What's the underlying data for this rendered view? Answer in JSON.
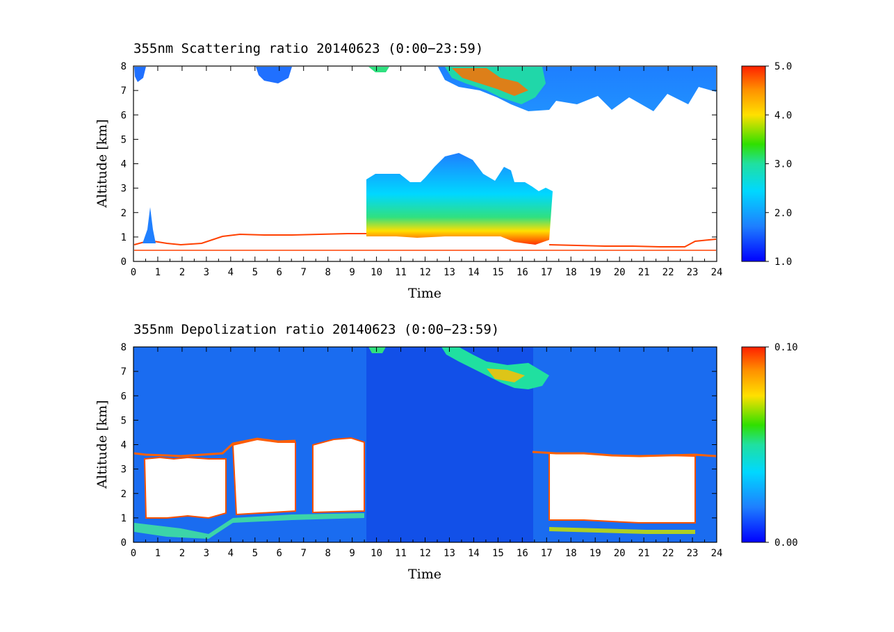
{
  "chart_data": [
    {
      "type": "heatmap",
      "title": "355nm Scattering ratio  20140623 (0:00−23:59)",
      "xlabel": "Time",
      "ylabel": "Altitude [km]",
      "xlim": [
        0,
        24
      ],
      "ylim": [
        0,
        8
      ],
      "x_ticks": [
        "0",
        "1",
        "2",
        "3",
        "4",
        "5",
        "6",
        "7",
        "8",
        "9",
        "10",
        "11",
        "12",
        "13",
        "14",
        "15",
        "16",
        "17",
        "18",
        "19",
        "20",
        "21",
        "22",
        "23",
        "24"
      ],
      "y_ticks": [
        "0",
        "1",
        "2",
        "3",
        "4",
        "5",
        "6",
        "7",
        "8"
      ],
      "colorbar": {
        "range": [
          1.0,
          5.0
        ],
        "tick_labels": [
          "5.0",
          "4.0",
          "3.0",
          "2.0",
          "1.0"
        ],
        "colors": [
          "#0000ff",
          "#1e7fff",
          "#00d8ff",
          "#20e0a0",
          "#30e000",
          "#ffe000",
          "#ff9000",
          "#ff2000"
        ]
      }
    },
    {
      "type": "heatmap",
      "title": "355nm Depolization ratio  20140623 (0:00−23:59)",
      "xlabel": "Time",
      "ylabel": "Altitude [km]",
      "xlim": [
        0,
        24
      ],
      "ylim": [
        0,
        8
      ],
      "x_ticks": [
        "0",
        "1",
        "2",
        "3",
        "4",
        "5",
        "6",
        "7",
        "8",
        "9",
        "10",
        "11",
        "12",
        "13",
        "14",
        "15",
        "16",
        "17",
        "18",
        "19",
        "20",
        "21",
        "22",
        "23",
        "24"
      ],
      "y_ticks": [
        "0",
        "1",
        "2",
        "3",
        "4",
        "5",
        "6",
        "7",
        "8"
      ],
      "colorbar": {
        "range": [
          0.0,
          0.1
        ],
        "tick_labels": [
          "0.10",
          "0.00"
        ],
        "colors": [
          "#0000ff",
          "#1e7fff",
          "#00d8ff",
          "#20e0a0",
          "#30e000",
          "#ffe000",
          "#ff9000",
          "#ff2000"
        ]
      }
    }
  ]
}
